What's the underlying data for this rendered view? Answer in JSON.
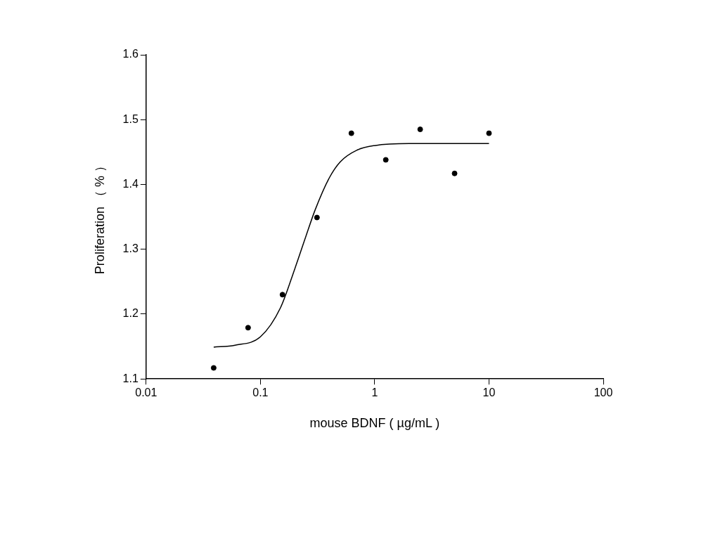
{
  "chart_data": {
    "type": "scatter",
    "xlabel": "mouse BDNF ( µg/mL )",
    "ylabel": "Proliferation （ % ）",
    "log": "x",
    "xlim": [
      0.01,
      100
    ],
    "xticks": [
      0.01,
      0.1,
      1,
      10,
      100
    ],
    "ylim": [
      1.1,
      1.6
    ],
    "yticks": [
      1.1,
      1.2,
      1.3,
      1.4,
      1.5,
      1.6
    ],
    "grid": false,
    "legend": false,
    "series": [
      {
        "type": "scatter",
        "color": "#000000",
        "marker": "circle",
        "x": [
          0.039,
          0.078,
          0.156,
          0.3125,
          0.625,
          1.25,
          2.5,
          5,
          10
        ],
        "values": [
          1.117,
          1.179,
          1.23,
          1.349,
          1.479,
          1.438,
          1.485,
          1.417,
          1.479
        ]
      },
      {
        "type": "line",
        "color": "#000000",
        "marker": "none",
        "line_style": "solid",
        "x": [
          0.039,
          0.06,
          0.1,
          0.15,
          0.2,
          0.25,
          0.3,
          0.4,
          0.5,
          0.7,
          1,
          2,
          10
        ],
        "values": [
          1.149,
          1.152,
          1.165,
          1.21,
          1.27,
          1.32,
          1.36,
          1.41,
          1.435,
          1.453,
          1.46,
          1.463,
          1.463
        ]
      }
    ]
  }
}
